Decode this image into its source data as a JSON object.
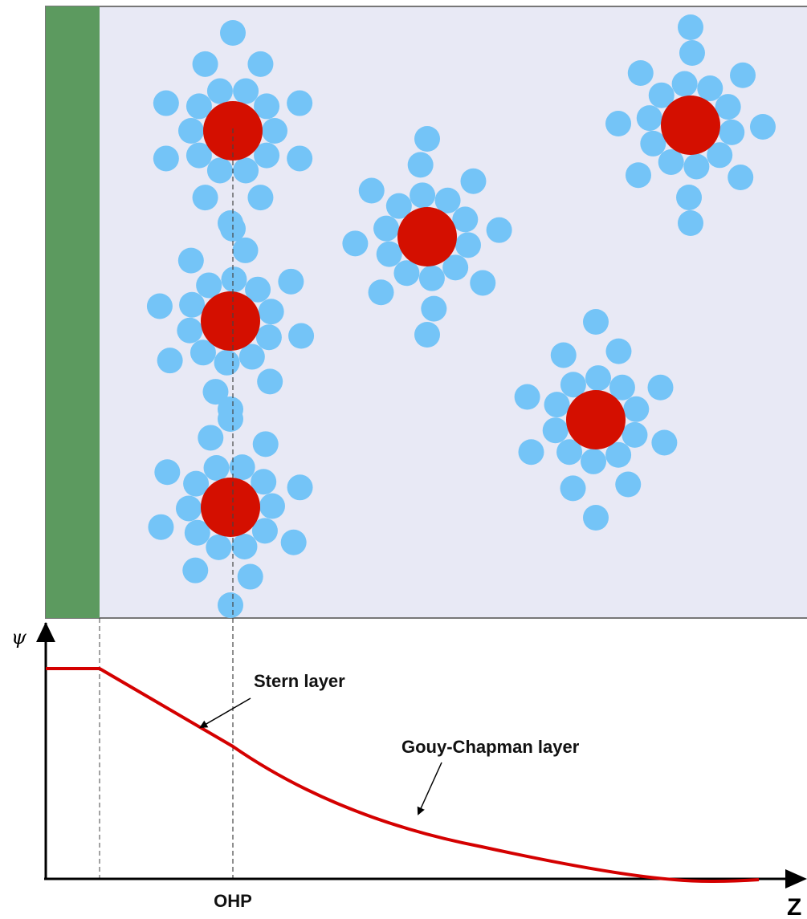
{
  "labels": {
    "psi": "ψ",
    "stern": "Stern layer",
    "gouy": "Gouy-Chapman layer",
    "ohp": "OHP",
    "z": "Z"
  }
}
